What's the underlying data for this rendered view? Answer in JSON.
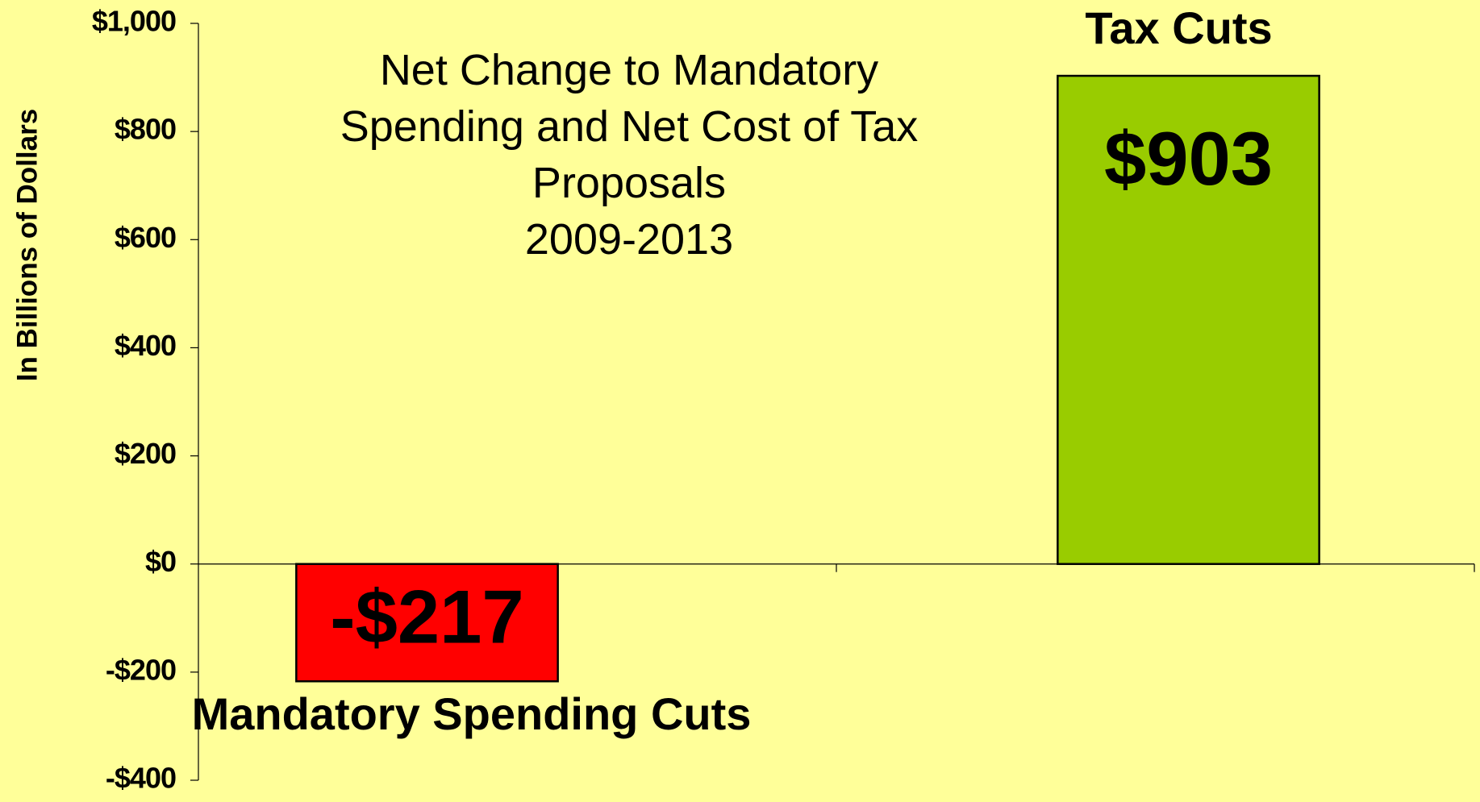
{
  "chart_data": {
    "type": "bar",
    "title": "Net Change to Mandatory Spending and Net Cost of Tax Proposals",
    "subtitle": "2009-2013",
    "y_label": "In Billions of Dollars",
    "categories": [
      "Mandatory Spending Cuts",
      "Tax Cuts"
    ],
    "values": [
      -217,
      903
    ],
    "value_labels": [
      "-$217",
      "$903"
    ],
    "colors": [
      "#ff0000",
      "#99cc00"
    ],
    "ylim": [
      -400,
      1000
    ],
    "yticks": [
      {
        "value": -400,
        "label": "-$400"
      },
      {
        "value": -200,
        "label": "-$200"
      },
      {
        "value": 0,
        "label": "$0"
      },
      {
        "value": 200,
        "label": "$200"
      },
      {
        "value": 400,
        "label": "$400"
      },
      {
        "value": 600,
        "label": "$600"
      },
      {
        "value": 800,
        "label": "$800"
      },
      {
        "value": 1000,
        "label": "$1,000"
      }
    ],
    "grid": false
  }
}
